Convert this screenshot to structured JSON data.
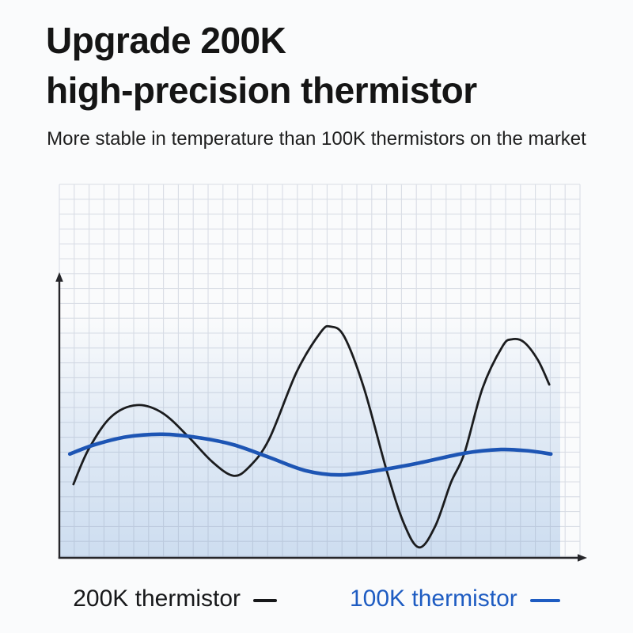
{
  "page": {
    "background": "#fafbfc"
  },
  "header": {
    "title_line1": "Upgrade 200K",
    "title_line2": "high-precision thermistor",
    "subtitle": "More stable in temperature than 100K thermistors on the market",
    "title_color": "#151515"
  },
  "chart_data": {
    "type": "line",
    "title": "",
    "xlabel": "",
    "ylabel": "",
    "tick_labels": "none",
    "grid": true,
    "x_range": [
      0,
      1
    ],
    "y_range": [
      0,
      1
    ],
    "legend_position": "bottom",
    "grid_line_color": "#8e9bb3",
    "area_fill_color": "#cdddf0",
    "axis_color": "#26262a",
    "series": [
      {
        "name": "200K thermistor",
        "color": "#1b1c1e",
        "width": 2.8,
        "points": [
          [
            0.027,
            0.197
          ],
          [
            0.056,
            0.29
          ],
          [
            0.099,
            0.377
          ],
          [
            0.149,
            0.409
          ],
          [
            0.198,
            0.388
          ],
          [
            0.248,
            0.324
          ],
          [
            0.293,
            0.258
          ],
          [
            0.334,
            0.22
          ],
          [
            0.365,
            0.244
          ],
          [
            0.403,
            0.318
          ],
          [
            0.456,
            0.498
          ],
          [
            0.502,
            0.604
          ],
          [
            0.521,
            0.619
          ],
          [
            0.547,
            0.593
          ],
          [
            0.585,
            0.455
          ],
          [
            0.628,
            0.237
          ],
          [
            0.661,
            0.095
          ],
          [
            0.691,
            0.028
          ],
          [
            0.722,
            0.085
          ],
          [
            0.752,
            0.201
          ],
          [
            0.778,
            0.28
          ],
          [
            0.813,
            0.455
          ],
          [
            0.851,
            0.566
          ],
          [
            0.869,
            0.585
          ],
          [
            0.892,
            0.578
          ],
          [
            0.919,
            0.53
          ],
          [
            0.941,
            0.464
          ]
        ]
      },
      {
        "name": "100K thermistor",
        "color": "#1d55b4",
        "width": 4.6,
        "points": [
          [
            0.02,
            0.278
          ],
          [
            0.068,
            0.303
          ],
          [
            0.129,
            0.324
          ],
          [
            0.198,
            0.331
          ],
          [
            0.266,
            0.322
          ],
          [
            0.334,
            0.303
          ],
          [
            0.403,
            0.269
          ],
          [
            0.474,
            0.233
          ],
          [
            0.54,
            0.222
          ],
          [
            0.616,
            0.235
          ],
          [
            0.691,
            0.254
          ],
          [
            0.778,
            0.28
          ],
          [
            0.848,
            0.29
          ],
          [
            0.904,
            0.286
          ],
          [
            0.944,
            0.278
          ]
        ]
      }
    ]
  },
  "legend": {
    "items": [
      {
        "label": "200K thermistor",
        "color": "#17181a"
      },
      {
        "label": "100K thermistor",
        "color": "#1e5cc2"
      }
    ]
  }
}
